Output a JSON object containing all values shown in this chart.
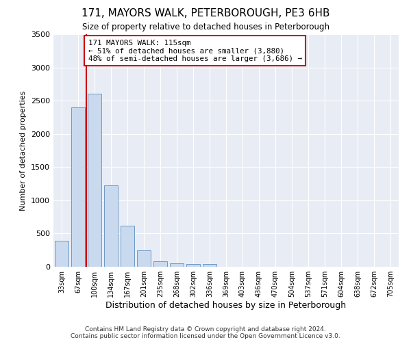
{
  "title": "171, MAYORS WALK, PETERBOROUGH, PE3 6HB",
  "subtitle": "Size of property relative to detached houses in Peterborough",
  "xlabel": "Distribution of detached houses by size in Peterborough",
  "ylabel": "Number of detached properties",
  "bar_color": "#c9d9ee",
  "bar_edge_color": "#5b8ec4",
  "bg_color": "#e8edf5",
  "grid_color": "#ffffff",
  "fig_bg_color": "#ffffff",
  "categories": [
    "33sqm",
    "67sqm",
    "100sqm",
    "134sqm",
    "167sqm",
    "201sqm",
    "235sqm",
    "268sqm",
    "302sqm",
    "336sqm",
    "369sqm",
    "403sqm",
    "436sqm",
    "470sqm",
    "504sqm",
    "537sqm",
    "571sqm",
    "604sqm",
    "638sqm",
    "672sqm",
    "705sqm"
  ],
  "values": [
    390,
    2400,
    2600,
    1220,
    620,
    250,
    80,
    55,
    45,
    40,
    0,
    0,
    0,
    0,
    0,
    0,
    0,
    0,
    0,
    0,
    0
  ],
  "ylim": [
    0,
    3500
  ],
  "yticks": [
    0,
    500,
    1000,
    1500,
    2000,
    2500,
    3000,
    3500
  ],
  "property_line_bin": 2,
  "annotation_text": "171 MAYORS WALK: 115sqm\n← 51% of detached houses are smaller (3,880)\n48% of semi-detached houses are larger (3,686) →",
  "annotation_box_color": "#ffffff",
  "annotation_border_color": "#cc0000",
  "property_line_color": "#cc0000",
  "footer": "Contains HM Land Registry data © Crown copyright and database right 2024.\nContains public sector information licensed under the Open Government Licence v3.0."
}
